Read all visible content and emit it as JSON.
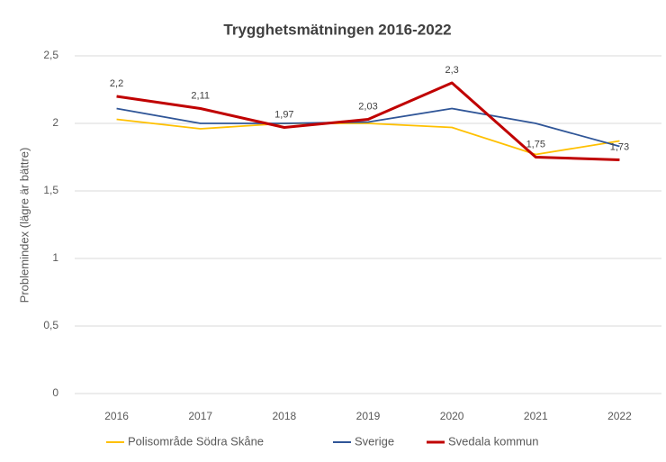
{
  "chart_data": {
    "type": "line",
    "title": "Trygghetsmätningen 2016-2022",
    "y_label": "Problemindex (lägre är bättre)",
    "categories": [
      "2016",
      "2017",
      "2018",
      "2019",
      "2020",
      "2021",
      "2022"
    ],
    "series": [
      {
        "name": "Polisområde Södra Skåne",
        "color": "#ffc000",
        "values": [
          2.03,
          1.96,
          2.0,
          2.0,
          1.97,
          1.77,
          1.87
        ]
      },
      {
        "name": "Sverige",
        "color": "#2f5597",
        "values": [
          2.11,
          2.0,
          2.0,
          2.01,
          2.11,
          2.0,
          1.83
        ]
      },
      {
        "name": "Svedala kommun",
        "color": "#c00000",
        "values": [
          2.2,
          2.11,
          1.97,
          2.03,
          2.3,
          1.75,
          1.73
        ],
        "value_labels": [
          "2,2",
          "2,11",
          "1,97",
          "2,03",
          "2,3",
          "1,75",
          "1,73"
        ]
      }
    ],
    "ylim": [
      0,
      2.5
    ],
    "yticks": [
      0,
      {
        "value": 0.5,
        "label": "0,5"
      },
      1,
      {
        "value": 1.5,
        "label": "1,5"
      },
      2,
      {
        "value": 2.5,
        "label": "2,5"
      }
    ],
    "grid": true,
    "legend": "bottom"
  }
}
